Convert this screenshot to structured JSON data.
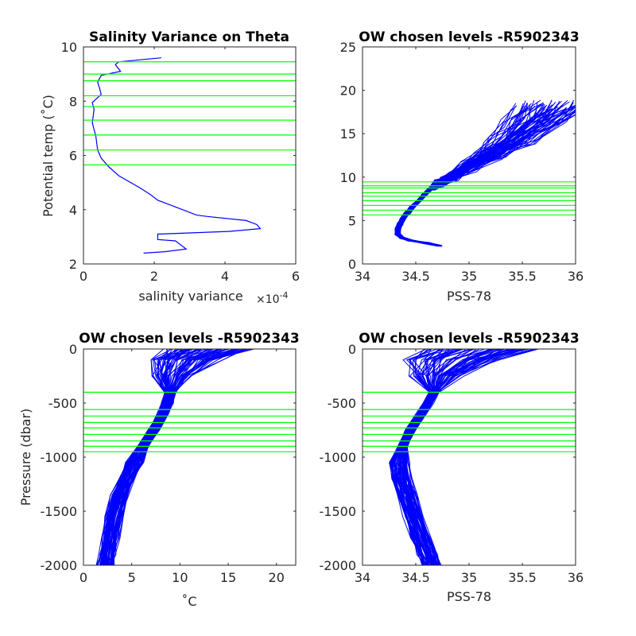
{
  "chart_data": [
    {
      "id": "salvar",
      "type": "line",
      "title": "Salinity Variance on Theta",
      "xlabel": "salinity variance",
      "x_exponent": "×10",
      "x_exponent_power": "-4",
      "ylabel": "Potential temp (˚C)",
      "xlim": [
        0,
        6
      ],
      "ylim": [
        2,
        10
      ],
      "xticks": [
        "0",
        "2",
        "4",
        "6"
      ],
      "yticks": [
        "2",
        "4",
        "6",
        "8",
        "10"
      ],
      "grid": false,
      "series": [
        {
          "color": "#0000ff",
          "x": [
            2.2,
            1.0,
            0.9,
            1.05,
            0.5,
            0.4,
            0.45,
            0.5,
            0.25,
            0.3,
            0.25,
            0.35,
            0.4,
            0.5,
            0.7,
            1.0,
            1.6,
            1.9,
            2.1,
            2.6,
            3.2,
            3.5,
            4.6,
            4.9,
            5.0,
            4.1,
            2.1,
            2.1,
            2.6,
            2.9,
            2.3,
            1.7
          ],
          "y": [
            9.6,
            9.45,
            9.35,
            9.1,
            8.95,
            8.7,
            8.5,
            8.25,
            7.95,
            7.7,
            7.2,
            6.7,
            6.2,
            5.9,
            5.6,
            5.25,
            4.8,
            4.55,
            4.35,
            4.1,
            3.8,
            3.75,
            3.6,
            3.45,
            3.3,
            3.2,
            3.1,
            2.9,
            2.85,
            2.55,
            2.45,
            2.4
          ]
        }
      ],
      "hlines": [
        9.45,
        9.0,
        8.75,
        8.2,
        7.8,
        7.3,
        6.75,
        6.2,
        5.65
      ],
      "hline_color": "#00ff00"
    },
    {
      "id": "theta_s",
      "type": "line",
      "title": "OW chosen levels -R5902343",
      "xlabel": "PSS-78",
      "ylabel": "",
      "xlim": [
        34,
        36
      ],
      "ylim": [
        0,
        25
      ],
      "xticks": [
        "34",
        "34.5",
        "35",
        "35.5",
        "36"
      ],
      "yticks": [
        "0",
        "5",
        "10",
        "15",
        "20",
        "25"
      ],
      "grid": false,
      "profile_count": 70,
      "mean_profile": {
        "x": [
          34.72,
          34.6,
          34.45,
          34.37,
          34.33,
          34.33,
          34.35,
          34.38,
          34.42,
          34.47,
          34.53,
          34.58,
          34.63,
          34.68,
          34.75,
          34.85,
          35.0,
          35.2,
          35.4,
          35.6,
          35.75
        ],
        "y": [
          2.1,
          2.4,
          2.7,
          3.0,
          3.4,
          4.0,
          4.6,
          5.2,
          5.9,
          6.6,
          7.3,
          8.0,
          8.6,
          9.1,
          9.5,
          10.2,
          11.2,
          12.6,
          14.3,
          16.3,
          18.3
        ]
      },
      "series_color": "#0000ff",
      "hlines": [
        9.45,
        9.0,
        8.75,
        8.2,
        7.8,
        7.3,
        6.75,
        6.2,
        5.65
      ],
      "hline_color": "#00ff00"
    },
    {
      "id": "temp_p",
      "type": "line",
      "title": "OW chosen levels -R5902343",
      "xlabel": "˚C",
      "ylabel": "Pressure (dbar)",
      "xlim": [
        0,
        22
      ],
      "ylim": [
        -2000,
        0
      ],
      "xticks": [
        "0",
        "5",
        "10",
        "15",
        "20"
      ],
      "yticks": [
        "-2000",
        "-1500",
        "-1000",
        "-500",
        "0"
      ],
      "grid": false,
      "profile_count": 70,
      "mean_profile": {
        "x": [
          13.0,
          10.5,
          9.3,
          9.0,
          8.7,
          8.2,
          7.3,
          6.2,
          5.3,
          4.5,
          3.8,
          3.2,
          2.8,
          2.5,
          2.3
        ],
        "y": [
          0,
          -100,
          -250,
          -400,
          -500,
          -600,
          -750,
          -900,
          -1050,
          -1200,
          -1350,
          -1550,
          -1750,
          -1900,
          -2000
        ]
      },
      "series_color": "#0000ff",
      "hlines": [
        -400,
        -560,
        -620,
        -680,
        -730,
        -790,
        -850,
        -900,
        -950
      ],
      "hline_color": "#00ff00"
    },
    {
      "id": "sal_p",
      "type": "line",
      "title": "OW chosen levels -R5902343",
      "xlabel": "PSS-78",
      "ylabel": "",
      "xlim": [
        34,
        36
      ],
      "ylim": [
        -2000,
        0
      ],
      "xticks": [
        "34",
        "34.5",
        "35",
        "35.5",
        "36"
      ],
      "yticks": [
        "-2000",
        "-1500",
        "-1000",
        "-500",
        "0"
      ],
      "grid": false,
      "profile_count": 70,
      "mean_profile": {
        "x": [
          35.1,
          34.85,
          34.7,
          34.67,
          34.62,
          34.55,
          34.45,
          34.38,
          34.35,
          34.37,
          34.42,
          34.48,
          34.55,
          34.61,
          34.65
        ],
        "y": [
          0,
          -100,
          -250,
          -400,
          -500,
          -600,
          -750,
          -900,
          -1050,
          -1200,
          -1350,
          -1550,
          -1750,
          -1900,
          -2000
        ]
      },
      "series_color": "#0000ff",
      "hlines": [
        -400,
        -560,
        -620,
        -680,
        -730,
        -790,
        -850,
        -900,
        -950
      ],
      "hline_color": "#00ff00"
    }
  ]
}
